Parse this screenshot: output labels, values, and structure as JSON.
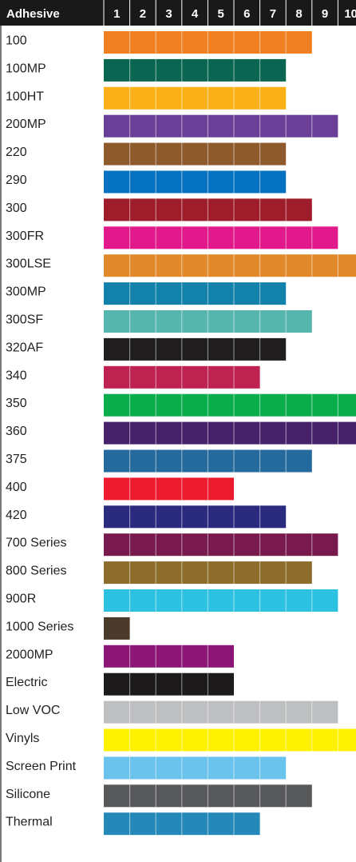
{
  "chart_data": {
    "type": "bar",
    "header": {
      "label": "Adhesive",
      "columns": [
        "1",
        "2",
        "3",
        "4",
        "5",
        "6",
        "7",
        "8",
        "9",
        "10"
      ]
    },
    "xlim": [
      0,
      10
    ],
    "grid": true,
    "bars": [
      {
        "label": "100",
        "value": 8,
        "color": "#f07f21"
      },
      {
        "label": "100MP",
        "value": 7,
        "color": "#0a6650"
      },
      {
        "label": "100HT",
        "value": 7,
        "color": "#fbb017"
      },
      {
        "label": "200MP",
        "value": 9,
        "color": "#6a3f98"
      },
      {
        "label": "220",
        "value": 7,
        "color": "#8e5a2b"
      },
      {
        "label": "290",
        "value": 7,
        "color": "#0472c0"
      },
      {
        "label": "300",
        "value": 8,
        "color": "#9f1c2a"
      },
      {
        "label": "300FR",
        "value": 9,
        "color": "#e2198a"
      },
      {
        "label": "300LSE",
        "value": 10,
        "color": "#e08a2b"
      },
      {
        "label": "300MP",
        "value": 7,
        "color": "#1382ab"
      },
      {
        "label": "300SF",
        "value": 8,
        "color": "#56b6ad"
      },
      {
        "label": "320AF",
        "value": 7,
        "color": "#1f1d1e"
      },
      {
        "label": "340",
        "value": 6,
        "color": "#bd2250"
      },
      {
        "label": "350",
        "value": 10,
        "color": "#0aad4c"
      },
      {
        "label": "360",
        "value": 10,
        "color": "#45226a"
      },
      {
        "label": "375",
        "value": 8,
        "color": "#246a9d"
      },
      {
        "label": "400",
        "value": 5,
        "color": "#ec1c2e"
      },
      {
        "label": "420",
        "value": 7,
        "color": "#2a2a7f"
      },
      {
        "label": "700 Series",
        "value": 9,
        "color": "#781a4d"
      },
      {
        "label": "800 Series",
        "value": 8,
        "color": "#8c6d2c"
      },
      {
        "label": "900R",
        "value": 9,
        "color": "#2ec2e2"
      },
      {
        "label": "1000 Series",
        "value": 1,
        "color": "#4a3a2c"
      },
      {
        "label": "2000MP",
        "value": 5,
        "color": "#8b1675"
      },
      {
        "label": "Electric",
        "value": 5,
        "color": "#1c1a1b"
      },
      {
        "label": "Low VOC",
        "value": 9,
        "color": "#bebfc1"
      },
      {
        "label": "Vinyls",
        "value": 10,
        "color": "#fff200"
      },
      {
        "label": "Screen Print",
        "value": 7,
        "color": "#6ac3ec"
      },
      {
        "label": "Silicone",
        "value": 8,
        "color": "#58595b"
      },
      {
        "label": "Thermal",
        "value": 6,
        "color": "#2489b8"
      }
    ],
    "colors": {
      "header_bg": "#1a1919",
      "grid_line": "#ffffff",
      "text": "#231f20",
      "axis_line": "#231f20"
    }
  }
}
